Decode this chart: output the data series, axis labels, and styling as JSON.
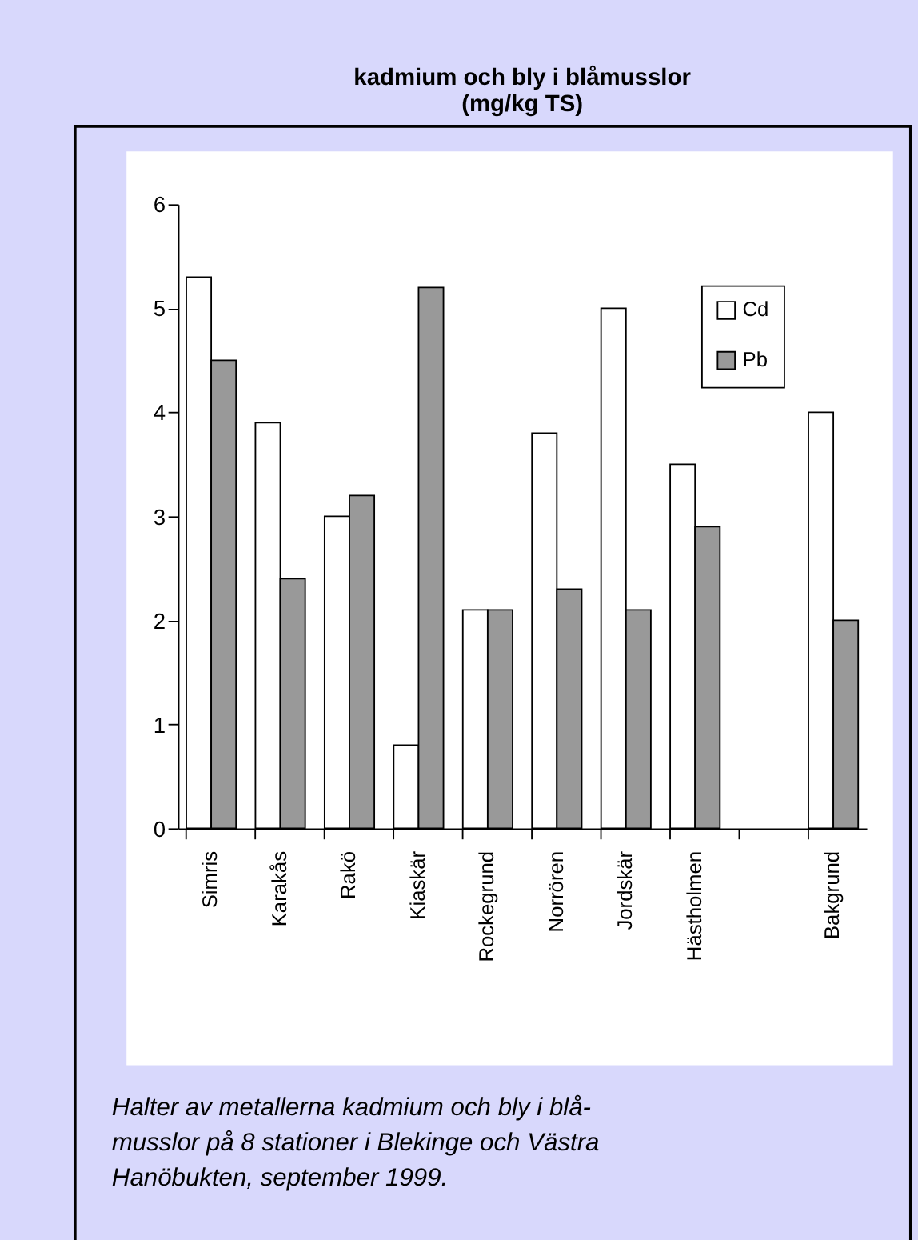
{
  "chart_data": {
    "type": "bar",
    "title": "kadmium och bly i blåmusslor\n(mg/kg TS)",
    "categories": [
      "Simris",
      "Karakås",
      "Rakö",
      "Kiaskär",
      "Rockegrund",
      "Norrören",
      "Jordskär",
      "Hästholmen",
      null,
      "Bakgrund"
    ],
    "series": [
      {
        "name": "Cd",
        "color": "#ffffff",
        "values": [
          5.3,
          3.9,
          3.0,
          0.8,
          2.1,
          3.8,
          5.0,
          3.5,
          null,
          4.0
        ]
      },
      {
        "name": "Pb",
        "color": "#999999",
        "values": [
          4.5,
          2.4,
          3.2,
          5.2,
          2.1,
          2.3,
          2.1,
          2.9,
          null,
          2.0
        ]
      }
    ],
    "ylim": [
      0,
      6
    ],
    "yticks": [
      0,
      1,
      2,
      3,
      4,
      5,
      6
    ],
    "grid": false,
    "legend": "top right",
    "annotations": [
      "Halter av metallerna kadmium och bly i blå-\nmusslor på 8 stationer i Blekinge och Västra\nHanöbukten, september 1999."
    ]
  }
}
